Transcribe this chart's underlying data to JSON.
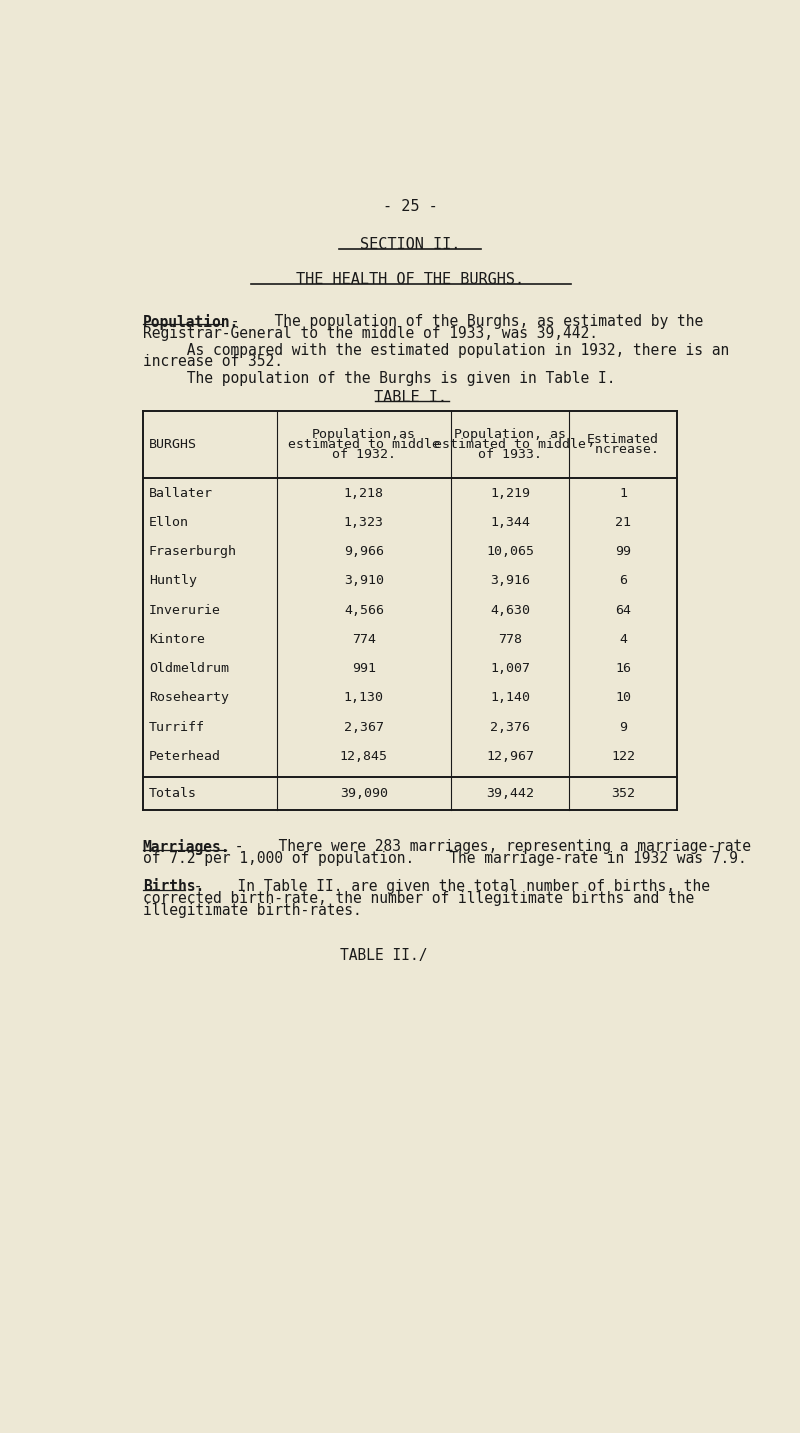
{
  "bg_color": "#ede8d5",
  "text_color": "#1a1a1a",
  "page_number": "- 25 -",
  "section_title": "SECTION II.",
  "subtitle": "THE HEALTH OF THE BURGHS.",
  "para1_bold": "Population.",
  "para1_line1": " -    The population of the Burghs, as estimated by the",
  "para1_line2": "Registrar-General to the middle of 1933, was 39,442.",
  "para2_line1": "     As compared with the estimated population in 1932, there is an",
  "para2_line2": "increase of 352.",
  "para3": "     The population of the Burghs is given in Table I.",
  "table_title": "TABLE I.",
  "col_headers_0": "BURGHS",
  "col_headers_1": [
    "Population,as",
    "estimated to middle",
    "of 1932."
  ],
  "col_headers_2": [
    "Population, as",
    "estimated to middle",
    "of 1933."
  ],
  "col_headers_3": [
    "Estimated",
    "’ncrease."
  ],
  "rows": [
    [
      "Ballater",
      "1,218",
      "1,219",
      "1"
    ],
    [
      "Ellon",
      "1,323",
      "1,344",
      "21"
    ],
    [
      "Fraserburgh",
      "9,966",
      "10,065",
      "99"
    ],
    [
      "Huntly",
      "3,910",
      "3,916",
      "6"
    ],
    [
      "Inverurie",
      "4,566",
      "4,630",
      "64"
    ],
    [
      "Kintore",
      "774",
      "778",
      "4"
    ],
    [
      "Oldmeldrum",
      "991",
      "1,007",
      "16"
    ],
    [
      "Rosehearty",
      "1,130",
      "1,140",
      "10"
    ],
    [
      "Turriff",
      "2,367",
      "2,376",
      "9"
    ],
    [
      "Peterhead",
      "12,845",
      "12,967",
      "122"
    ]
  ],
  "totals_row": [
    "Totals",
    "39,090",
    "39,442",
    "352"
  ],
  "marriages_bold": "Marriages.",
  "marriages_line1": " -    There were 283 marriages, representing a marriage-rate",
  "marriages_line2": "of 7.2 per 1,000 of population.    The marriage-rate in 1932 was 7.9.",
  "births_bold": "Births.",
  "births_line1": " -    In Table II. are given the total number of births, the",
  "births_line2": "corrected birth-rate, the number of illegitimate births and the",
  "births_line3": "illegitimate birth-rates.",
  "table2_ref": "TABLE II./"
}
